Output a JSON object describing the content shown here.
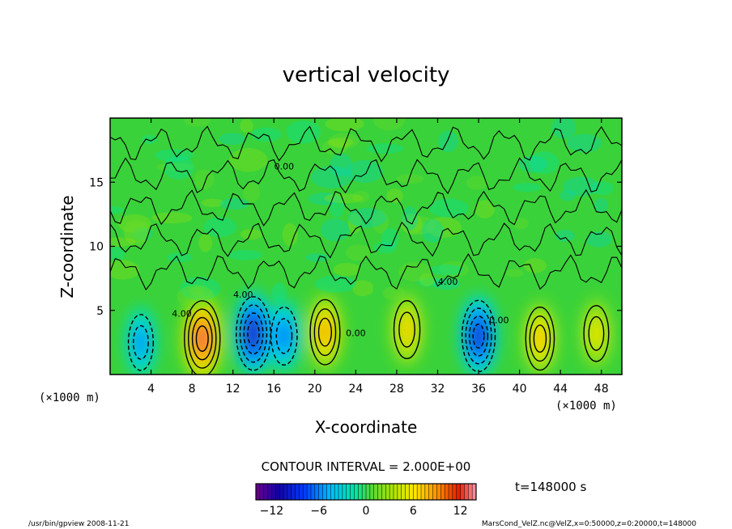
{
  "chart_data": {
    "type": "heatmap",
    "title": "vertical velocity",
    "xlabel": "X-coordinate",
    "ylabel": "Z-coordinate",
    "x_unit": "(×1000 m)",
    "y_unit": "(×1000 m)",
    "xlim": [
      0,
      50
    ],
    "ylim": [
      0,
      20
    ],
    "x_ticks": [
      4,
      8,
      12,
      16,
      20,
      24,
      28,
      32,
      36,
      40,
      44,
      48
    ],
    "y_ticks": [
      5,
      10,
      15
    ],
    "contour_interval_text": "CONTOUR INTERVAL = 2.000E+00",
    "contour_labels": [
      "0.00",
      "4.00"
    ],
    "time_text": "t=148000 s",
    "colorbar": {
      "range": [
        -14,
        14
      ],
      "ticks": [
        -12,
        -6,
        0,
        6,
        12
      ],
      "ticks_text": [
        "−12",
        "−6",
        "0",
        "6",
        "12"
      ]
    },
    "cells": [
      {
        "x": 3.0,
        "z": 2.5,
        "w": -6
      },
      {
        "x": 9.0,
        "z": 2.8,
        "w": 13
      },
      {
        "x": 14.0,
        "z": 3.2,
        "w": -12
      },
      {
        "x": 17.0,
        "z": 3.0,
        "w": -7
      },
      {
        "x": 21.0,
        "z": 3.3,
        "w": 9
      },
      {
        "x": 29.0,
        "z": 3.5,
        "w": 7
      },
      {
        "x": 36.0,
        "z": 3.0,
        "w": -11
      },
      {
        "x": 42.0,
        "z": 2.8,
        "w": 8
      },
      {
        "x": 47.5,
        "z": 3.2,
        "w": 6
      }
    ]
  },
  "footer": {
    "left": "/usr/bin/gpview  2008-11-21",
    "right": "MarsCond_VelZ.nc@VelZ,x=0:50000,z=0:20000,t=148000"
  }
}
